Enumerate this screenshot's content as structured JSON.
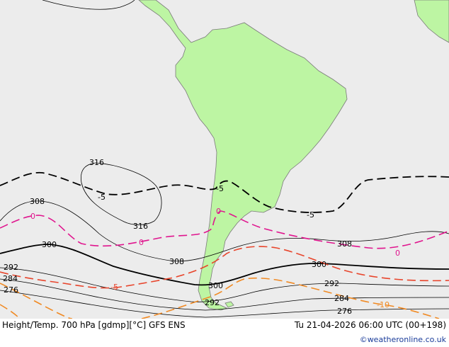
{
  "map": {
    "colors": {
      "ocean": "#ececec",
      "land": "#bdf5a3",
      "coast": "#7a7a7a",
      "height": "#000000",
      "temp_neg": "#e8452c",
      "temp_zero": "#e0158e",
      "temp_cold": "#f08a24"
    },
    "height_labels": [
      "316",
      "316",
      "308",
      "308",
      "308",
      "300",
      "300",
      "300",
      "292",
      "292",
      "292",
      "284",
      "284",
      "276",
      "276"
    ],
    "temp_labels": [
      "-5",
      "-5",
      "-5",
      "0",
      "0",
      "0",
      "0",
      "-5",
      "-10"
    ]
  },
  "footer": {
    "title": "Height/Temp. 700 hPa [gdmp][°C] GFS ENS",
    "datetime": "Tu 21-04-2026 06:00 UTC (00+198)",
    "credit": "©weatheronline.co.uk"
  }
}
